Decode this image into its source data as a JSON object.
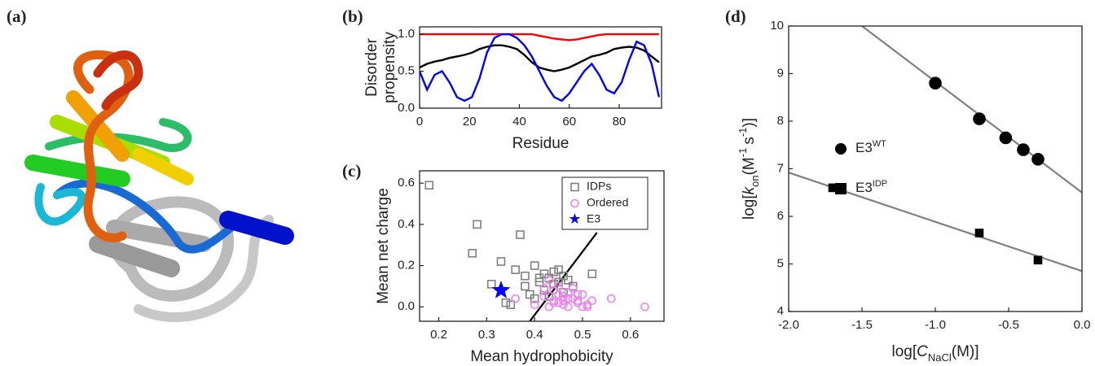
{
  "image_panel": {
    "label": "(a)"
  },
  "chart_data": [
    {
      "type": "line",
      "label": "(b)",
      "ylabel": [
        "Disorder",
        "propensity"
      ],
      "xlabel": "Residue",
      "xlim": [
        0,
        97
      ],
      "xticks": [
        0,
        20,
        40,
        60,
        80
      ],
      "ylim": [
        0,
        1.1
      ],
      "yticks": [
        {
          "value": 0,
          "label": "0.0"
        },
        0.5,
        {
          "value": 1,
          "label": "1.0"
        }
      ],
      "x": [
        0,
        3,
        6,
        9,
        12,
        15,
        18,
        21,
        24,
        27,
        30,
        33,
        36,
        39,
        42,
        45,
        48,
        51,
        54,
        57,
        60,
        63,
        66,
        69,
        72,
        75,
        78,
        81,
        84,
        87,
        90,
        93,
        96
      ],
      "series": [
        {
          "color": "#ff0000",
          "values": [
            1,
            1,
            1,
            1,
            1,
            1,
            1,
            1,
            1,
            1,
            1,
            1,
            1,
            1,
            1,
            1,
            0.98,
            0.96,
            0.94,
            0.93,
            0.92,
            0.93,
            0.95,
            0.97,
            0.99,
            1,
            1,
            1,
            1,
            1,
            1,
            1,
            1
          ]
        },
        {
          "color": "#000000",
          "values": [
            0.55,
            0.6,
            0.63,
            0.65,
            0.68,
            0.7,
            0.72,
            0.75,
            0.8,
            0.83,
            0.85,
            0.85,
            0.83,
            0.8,
            0.72,
            0.62,
            0.55,
            0.52,
            0.5,
            0.52,
            0.55,
            0.6,
            0.65,
            0.7,
            0.72,
            0.75,
            0.8,
            0.82,
            0.83,
            0.82,
            0.78,
            0.7,
            0.62
          ]
        },
        {
          "color": "#0000ff",
          "values": [
            0.5,
            0.25,
            0.45,
            0.5,
            0.35,
            0.15,
            0.1,
            0.15,
            0.4,
            0.75,
            0.95,
            1,
            1,
            0.95,
            0.85,
            0.7,
            0.5,
            0.3,
            0.15,
            0.1,
            0.2,
            0.35,
            0.5,
            0.6,
            0.45,
            0.25,
            0.2,
            0.35,
            0.65,
            0.9,
            0.85,
            0.6,
            0.15
          ]
        }
      ]
    },
    {
      "type": "scatter",
      "label": "(c)",
      "ylabel": "Mean net charge",
      "xlabel": "Mean hydrophobicity",
      "xlim": [
        0.16,
        0.67
      ],
      "xticks": [
        0.2,
        0.3,
        0.4,
        0.5,
        0.6
      ],
      "ylim": [
        -0.07,
        0.66
      ],
      "yticks": [
        {
          "value": 0,
          "label": "0.0"
        },
        0.2,
        0.4,
        0.6
      ],
      "legend": "top-right",
      "lines": [
        {
          "color": "#000000",
          "x": [
            0.39,
            0.53
          ],
          "y": [
            -0.07,
            0.36
          ]
        }
      ],
      "series": [
        {
          "name": "IDPs",
          "color": "#808080",
          "marker": "square",
          "x": [
            0.18,
            0.27,
            0.28,
            0.31,
            0.33,
            0.37,
            0.34,
            0.36,
            0.38,
            0.39,
            0.4,
            0.41,
            0.42,
            0.43,
            0.44,
            0.45,
            0.46,
            0.47,
            0.48,
            0.4,
            0.42,
            0.44,
            0.46,
            0.35,
            0.38,
            0.52,
            0.41,
            0.43,
            0.45
          ],
          "values": [
            0.59,
            0.26,
            0.4,
            0.11,
            0.22,
            0.35,
            0.02,
            0.18,
            0.15,
            0.06,
            0.2,
            0.12,
            0.16,
            0.14,
            0.17,
            0.18,
            0.15,
            0.13,
            0.1,
            0.04,
            0.08,
            0.11,
            0.07,
            0.01,
            0.1,
            0.16,
            0.14,
            0.05,
            0.12
          ]
        },
        {
          "name": "Ordered",
          "color": "#ee82ee",
          "marker": "circle",
          "x": [
            0.36,
            0.4,
            0.42,
            0.43,
            0.44,
            0.45,
            0.46,
            0.47,
            0.48,
            0.49,
            0.5,
            0.51,
            0.52,
            0.44,
            0.45,
            0.46,
            0.47,
            0.48,
            0.49,
            0.5,
            0.43,
            0.45,
            0.47,
            0.49,
            0.51,
            0.56,
            0.63,
            0.42,
            0.44,
            0.46
          ],
          "values": [
            0.04,
            0.01,
            0.05,
            0,
            0.02,
            0.06,
            0.03,
            0,
            0.04,
            0.02,
            0.06,
            0.01,
            0.03,
            0.08,
            0.1,
            0.05,
            0.07,
            0.09,
            0.03,
            0,
            0.13,
            0.02,
            0.04,
            0.06,
            0,
            0.04,
            0,
            0.09,
            0.03,
            0.01
          ]
        },
        {
          "name": "E3",
          "color": "#0000ff",
          "marker": "star",
          "x": [
            0.33
          ],
          "values": [
            0.08
          ]
        }
      ]
    },
    {
      "type": "scatter",
      "label": "(d)",
      "ylabel": {
        "pre": "log[",
        "var": "k",
        "sub": "on",
        "mid": "(M",
        "sup": "-1",
        "mid2": "s",
        "sup2": "-1",
        "post": ")]"
      },
      "xlabel": {
        "pre": "log[",
        "var": "C",
        "sub": "NaCl",
        "post": "(M)]"
      },
      "xlim": [
        -2,
        0
      ],
      "xticks": [
        {
          "value": -2,
          "label": "-2.0"
        },
        -1.5,
        {
          "value": -1,
          "label": "-1.0"
        },
        -0.5,
        {
          "value": 0,
          "label": "0.0"
        }
      ],
      "ylim": [
        4,
        10
      ],
      "yticks": [
        4,
        5,
        6,
        7,
        8,
        9,
        10
      ],
      "legend": "left",
      "lines": [
        {
          "color": "#808080",
          "x": [
            -1.5,
            0
          ],
          "y": [
            10,
            6.5
          ]
        },
        {
          "color": "#808080",
          "x": [
            -2,
            0
          ],
          "y": [
            6.92,
            4.85
          ]
        }
      ],
      "series": [
        {
          "name": "E3",
          "superscript": "WT",
          "color": "#000000",
          "marker": "circle",
          "x": [
            -1,
            -0.7,
            -0.52,
            -0.4,
            -0.3
          ],
          "values": [
            8.8,
            8.05,
            7.65,
            7.4,
            7.2
          ]
        },
        {
          "name": "E3",
          "superscript": "IDP",
          "color": "#000000",
          "marker": "square",
          "x": [
            -1.7,
            -0.7,
            -0.3
          ],
          "values": [
            6.6,
            5.65,
            5.08
          ]
        }
      ]
    }
  ]
}
